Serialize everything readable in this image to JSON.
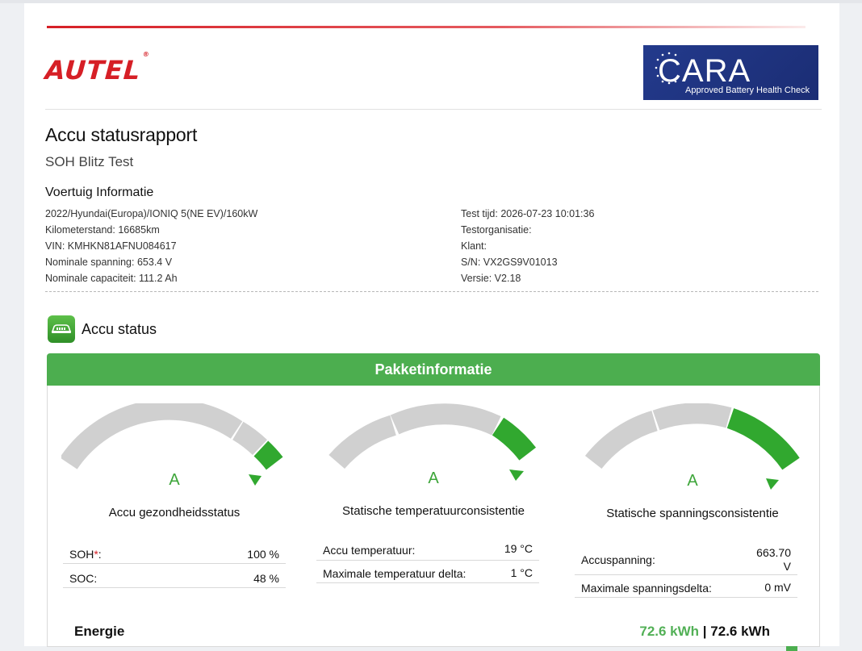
{
  "brand": {
    "logo": "AUTEL",
    "registered": "®"
  },
  "badge": {
    "name": "CARA",
    "subtitle": "Approved Battery Health Check",
    "colors": {
      "bg": "#1b2d74"
    }
  },
  "report": {
    "title": "Accu statusrapport",
    "subtitle": "SOH Blitz Test"
  },
  "vehicle": {
    "heading": "Voertuig Informatie",
    "left": [
      "2022/Hyundai(Europa)/IONIQ 5(NE EV)/160kW",
      "Kilometerstand: 16685km",
      "VIN: KMHKN81AFNU084617",
      "Nominale spanning: 653.4 V",
      "Nominale capaciteit: 111.2 Ah"
    ],
    "right": [
      "Test tijd: 2026-07-23 10:01:36",
      "Testorganisatie:",
      "Klant:",
      "S/N: VX2GS9V01013",
      "Versie: V2.18"
    ]
  },
  "battery_status": {
    "icon": "battery-car-icon",
    "title": "Accu status",
    "panel_title": "Pakketinformatie",
    "colors": {
      "accent": "#4cae4f",
      "grade": "#3da539",
      "track": "#d0d0d0"
    },
    "gauges": [
      {
        "grade": "A",
        "label": "Accu gezondheidsstatus",
        "rows": [
          {
            "key": "SOH",
            "required": "*",
            "key_suffix": ":",
            "value": "100 %"
          },
          {
            "key": "SOC:",
            "value": "48 %"
          }
        ]
      },
      {
        "grade": "A",
        "label": "Statische temperatuurconsistentie",
        "rows": [
          {
            "key": "Accu temperatuur:",
            "value": "19 °C"
          },
          {
            "key": "Maximale temperatuur delta:",
            "value": "1 °C"
          }
        ]
      },
      {
        "grade": "A",
        "label": "Statische spanningsconsistentie",
        "rows": [
          {
            "key": "Accuspanning:",
            "value_line1": "663.70",
            "value_line2": "V"
          },
          {
            "key": "Maximale spanningsdelta:",
            "value": "0 mV"
          }
        ]
      }
    ]
  },
  "energy": {
    "label": "Energie",
    "value_primary": "72.6 kWh",
    "separator": "|",
    "value_secondary": "72.6 kWh"
  }
}
